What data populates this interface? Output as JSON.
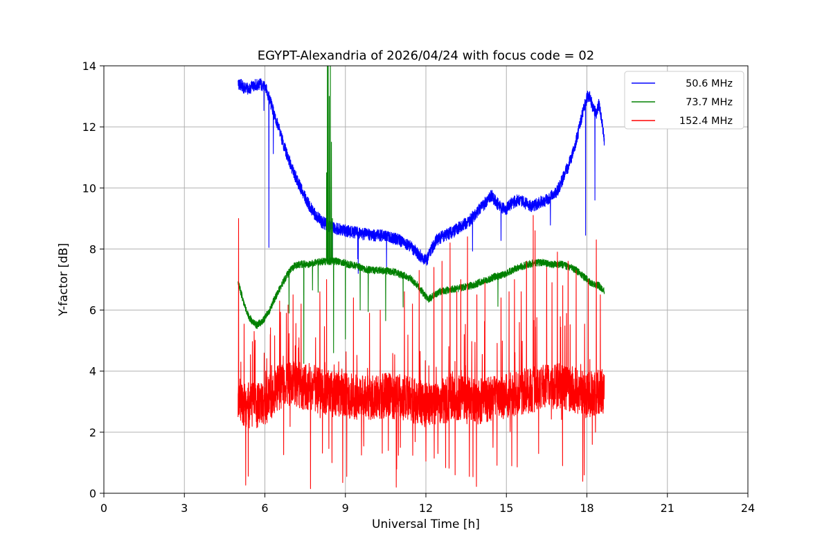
{
  "chart_data": {
    "type": "line",
    "title": "EGYPT-Alexandria of 2026/04/24 with focus code = 02",
    "xlabel": "Universal Time [h]",
    "ylabel": "Y-factor [dB]",
    "xlim": [
      0,
      24
    ],
    "ylim": [
      0,
      14
    ],
    "xticks": [
      0,
      3,
      6,
      9,
      12,
      15,
      18,
      21,
      24
    ],
    "yticks": [
      0,
      2,
      4,
      6,
      8,
      10,
      12,
      14
    ],
    "grid": true,
    "grid_color": "#b0b0b0",
    "background": "#ffffff",
    "legend": {
      "position": "upper right"
    },
    "sampling": {
      "x_start": 5.0,
      "x_end": 18.65,
      "step": 0.005,
      "seed": 42
    },
    "series": [
      {
        "name": "50.6 MHz",
        "color": "#0000ff",
        "noise": 0.2,
        "rand": {
          "p_up": 0.0,
          "up_max": 0,
          "p_down": 0.003,
          "down_max": 1.5
        },
        "anchors": [
          [
            5.0,
            13.45
          ],
          [
            5.2,
            13.3
          ],
          [
            5.4,
            13.25
          ],
          [
            5.6,
            13.35
          ],
          [
            5.8,
            13.4
          ],
          [
            6.0,
            13.35
          ],
          [
            6.1,
            13.1
          ],
          [
            6.3,
            12.55
          ],
          [
            6.5,
            12.0
          ],
          [
            6.7,
            11.4
          ],
          [
            6.9,
            10.9
          ],
          [
            7.1,
            10.45
          ],
          [
            7.3,
            10.05
          ],
          [
            7.5,
            9.7
          ],
          [
            7.7,
            9.35
          ],
          [
            7.9,
            9.1
          ],
          [
            8.1,
            8.9
          ],
          [
            8.4,
            8.75
          ],
          [
            8.7,
            8.65
          ],
          [
            9.0,
            8.6
          ],
          [
            9.3,
            8.55
          ],
          [
            9.6,
            8.5
          ],
          [
            10.0,
            8.45
          ],
          [
            10.4,
            8.45
          ],
          [
            10.8,
            8.35
          ],
          [
            11.1,
            8.25
          ],
          [
            11.4,
            8.1
          ],
          [
            11.7,
            7.85
          ],
          [
            11.9,
            7.7
          ],
          [
            12.05,
            7.65
          ],
          [
            12.2,
            8.0
          ],
          [
            12.4,
            8.3
          ],
          [
            12.7,
            8.45
          ],
          [
            13.0,
            8.55
          ],
          [
            13.3,
            8.75
          ],
          [
            13.6,
            8.9
          ],
          [
            13.9,
            9.2
          ],
          [
            14.2,
            9.5
          ],
          [
            14.45,
            9.75
          ],
          [
            14.6,
            9.55
          ],
          [
            14.8,
            9.35
          ],
          [
            15.0,
            9.3
          ],
          [
            15.2,
            9.5
          ],
          [
            15.45,
            9.6
          ],
          [
            15.7,
            9.5
          ],
          [
            15.9,
            9.4
          ],
          [
            16.1,
            9.45
          ],
          [
            16.3,
            9.55
          ],
          [
            16.5,
            9.6
          ],
          [
            16.7,
            9.75
          ],
          [
            16.9,
            9.9
          ],
          [
            17.1,
            10.3
          ],
          [
            17.3,
            10.7
          ],
          [
            17.5,
            11.2
          ],
          [
            17.7,
            11.9
          ],
          [
            17.85,
            12.5
          ],
          [
            18.0,
            12.95
          ],
          [
            18.1,
            13.05
          ],
          [
            18.2,
            12.7
          ],
          [
            18.35,
            12.4
          ],
          [
            18.45,
            12.75
          ],
          [
            18.55,
            12.3
          ],
          [
            18.65,
            11.55
          ]
        ],
        "spikes": [
          [
            6.15,
            8.05
          ],
          [
            8.52,
            7.6
          ],
          [
            17.95,
            8.45
          ],
          [
            18.3,
            9.6
          ]
        ]
      },
      {
        "name": "73.7 MHz",
        "color": "#008000",
        "noise": 0.12,
        "rand": {
          "p_up": 0.0,
          "up_max": 0,
          "p_down": 0.002,
          "down_max": 1.4
        },
        "anchors": [
          [
            5.0,
            6.9
          ],
          [
            5.1,
            6.6
          ],
          [
            5.25,
            6.1
          ],
          [
            5.4,
            5.8
          ],
          [
            5.55,
            5.6
          ],
          [
            5.7,
            5.5
          ],
          [
            5.85,
            5.6
          ],
          [
            6.0,
            5.75
          ],
          [
            6.15,
            5.95
          ],
          [
            6.3,
            6.25
          ],
          [
            6.5,
            6.6
          ],
          [
            6.7,
            6.95
          ],
          [
            6.9,
            7.25
          ],
          [
            7.1,
            7.45
          ],
          [
            7.3,
            7.5
          ],
          [
            7.6,
            7.5
          ],
          [
            7.9,
            7.55
          ],
          [
            8.2,
            7.6
          ],
          [
            8.5,
            7.6
          ],
          [
            8.8,
            7.6
          ],
          [
            9.1,
            7.5
          ],
          [
            9.4,
            7.45
          ],
          [
            9.7,
            7.35
          ],
          [
            10.0,
            7.3
          ],
          [
            10.4,
            7.3
          ],
          [
            10.8,
            7.25
          ],
          [
            11.1,
            7.15
          ],
          [
            11.4,
            7.05
          ],
          [
            11.7,
            6.8
          ],
          [
            11.95,
            6.5
          ],
          [
            12.1,
            6.35
          ],
          [
            12.25,
            6.45
          ],
          [
            12.5,
            6.6
          ],
          [
            12.8,
            6.65
          ],
          [
            13.1,
            6.7
          ],
          [
            13.4,
            6.75
          ],
          [
            13.7,
            6.8
          ],
          [
            14.0,
            6.9
          ],
          [
            14.3,
            7.0
          ],
          [
            14.6,
            7.1
          ],
          [
            14.9,
            7.15
          ],
          [
            15.2,
            7.3
          ],
          [
            15.5,
            7.4
          ],
          [
            15.8,
            7.5
          ],
          [
            16.1,
            7.55
          ],
          [
            16.4,
            7.55
          ],
          [
            16.7,
            7.5
          ],
          [
            17.0,
            7.5
          ],
          [
            17.2,
            7.45
          ],
          [
            17.4,
            7.4
          ],
          [
            17.6,
            7.3
          ],
          [
            17.8,
            7.15
          ],
          [
            18.0,
            7.0
          ],
          [
            18.15,
            6.9
          ],
          [
            18.3,
            6.85
          ],
          [
            18.45,
            6.8
          ],
          [
            18.65,
            6.6
          ]
        ],
        "spikes": [
          [
            6.9,
            5.9
          ],
          [
            7.45,
            4.25
          ],
          [
            8.3,
            10.5
          ],
          [
            8.33,
            14.8
          ],
          [
            8.36,
            14.8
          ],
          [
            8.4,
            13.0
          ],
          [
            8.44,
            14.5
          ],
          [
            8.48,
            11.5
          ],
          [
            8.52,
            9.0
          ],
          [
            8.56,
            4.6
          ],
          [
            9.0,
            5.05
          ],
          [
            9.55,
            6.0
          ],
          [
            10.5,
            5.65
          ],
          [
            11.15,
            6.1
          ]
        ]
      },
      {
        "name": "152.4 MHz",
        "color": "#ff0000",
        "noise": 0.75,
        "rand": {
          "p_up": 0.03,
          "up_max": 2.6,
          "p_down": 0.015,
          "down_max": 3.0
        },
        "anchors": [
          [
            5.0,
            3.1
          ],
          [
            5.2,
            2.95
          ],
          [
            5.5,
            2.85
          ],
          [
            5.8,
            2.9
          ],
          [
            6.1,
            3.05
          ],
          [
            6.4,
            3.35
          ],
          [
            6.7,
            3.6
          ],
          [
            7.0,
            3.6
          ],
          [
            7.3,
            3.5
          ],
          [
            7.6,
            3.45
          ],
          [
            7.9,
            3.4
          ],
          [
            8.2,
            3.3
          ],
          [
            8.5,
            3.25
          ],
          [
            8.8,
            3.2
          ],
          [
            9.1,
            3.2
          ],
          [
            9.5,
            3.15
          ],
          [
            10.0,
            3.1
          ],
          [
            10.5,
            3.2
          ],
          [
            11.0,
            3.15
          ],
          [
            11.5,
            3.05
          ],
          [
            12.0,
            2.9
          ],
          [
            12.5,
            3.0
          ],
          [
            13.0,
            3.1
          ],
          [
            13.5,
            3.1
          ],
          [
            14.0,
            3.0
          ],
          [
            14.5,
            3.1
          ],
          [
            15.0,
            3.2
          ],
          [
            15.5,
            3.3
          ],
          [
            16.0,
            3.4
          ],
          [
            16.5,
            3.5
          ],
          [
            17.0,
            3.5
          ],
          [
            17.5,
            3.4
          ],
          [
            18.0,
            3.2
          ],
          [
            18.3,
            3.3
          ],
          [
            18.65,
            3.35
          ]
        ],
        "spikes": [
          [
            5.02,
            9.0
          ],
          [
            5.6,
            5.3
          ],
          [
            6.2,
            5.2
          ],
          [
            6.55,
            6.3
          ],
          [
            6.8,
            5.9
          ],
          [
            7.05,
            6.5
          ],
          [
            7.35,
            6.2
          ],
          [
            7.7,
            0.15
          ],
          [
            8.05,
            6.6
          ],
          [
            8.3,
            7.0
          ],
          [
            8.5,
            1.0
          ],
          [
            8.9,
            0.35
          ],
          [
            9.05,
            0.55
          ],
          [
            9.3,
            6.4
          ],
          [
            9.6,
            1.25
          ],
          [
            9.9,
            5.9
          ],
          [
            10.3,
            6.0
          ],
          [
            10.6,
            1.4
          ],
          [
            11.05,
            1.5
          ],
          [
            11.2,
            6.6
          ],
          [
            11.5,
            6.2
          ],
          [
            11.75,
            7.3
          ],
          [
            12.0,
            1.05
          ],
          [
            12.3,
            7.4
          ],
          [
            12.45,
            1.3
          ],
          [
            12.6,
            7.6
          ],
          [
            12.9,
            8.2
          ],
          [
            13.15,
            6.6
          ],
          [
            13.3,
            7.0
          ],
          [
            13.55,
            8.4
          ],
          [
            13.62,
            0.55
          ],
          [
            13.9,
            6.5
          ],
          [
            14.2,
            6.9
          ],
          [
            14.5,
            1.5
          ],
          [
            14.8,
            6.4
          ],
          [
            15.1,
            6.6
          ],
          [
            15.3,
            7.0
          ],
          [
            15.55,
            6.6
          ],
          [
            15.75,
            7.6
          ],
          [
            16.0,
            9.1
          ],
          [
            16.07,
            8.6
          ],
          [
            16.2,
            1.3
          ],
          [
            16.5,
            7.4
          ],
          [
            16.7,
            6.9
          ],
          [
            16.9,
            7.9
          ],
          [
            17.1,
            6.8
          ],
          [
            17.3,
            7.6
          ],
          [
            17.6,
            7.3
          ],
          [
            17.9,
            0.6
          ],
          [
            18.05,
            7.0
          ],
          [
            18.2,
            1.6
          ],
          [
            18.35,
            8.3
          ],
          [
            18.5,
            6.5
          ]
        ]
      }
    ]
  }
}
